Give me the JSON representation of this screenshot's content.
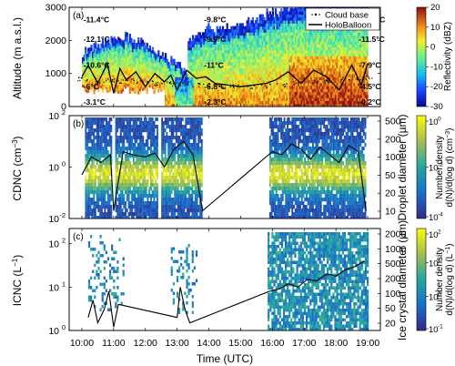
{
  "chart_data": [
    {
      "panel": "(a)",
      "type": "heatmap",
      "ylabel": "Altitude (m a.s.l.)",
      "ylim": [
        0,
        3000
      ],
      "yticks": [
        0,
        1000,
        2000,
        3000
      ],
      "colorbar": {
        "label": "Reflectivity (dBZ)",
        "range": [
          -30,
          20
        ],
        "ticks": [
          -30,
          -20,
          -10,
          0,
          10,
          20
        ]
      },
      "legend": {
        "placement": "top-right",
        "entries": [
          "Cloud base",
          "HoloBalloon"
        ]
      },
      "temperature_labels": [
        {
          "text": "-11.4°C",
          "x": 10.05,
          "y": 2550
        },
        {
          "text": "-12.1°C",
          "x": 10.05,
          "y": 1950
        },
        {
          "text": "-10.6°C",
          "x": 10.05,
          "y": 1170
        },
        {
          "text": "-6°C",
          "x": 10.05,
          "y": 520
        },
        {
          "text": "-3.1°C",
          "x": 10.05,
          "y": 60
        },
        {
          "text": "-9.8°C",
          "x": 13.85,
          "y": 2550
        },
        {
          "text": "-9.9°C",
          "x": 13.85,
          "y": 1950
        },
        {
          "text": "-11°C",
          "x": 13.85,
          "y": 1170
        },
        {
          "text": "-6.8°C",
          "x": 13.85,
          "y": 520
        },
        {
          "text": "-2.3°C",
          "x": 13.85,
          "y": 60
        },
        {
          "text": "-13.4°C",
          "x": 18.72,
          "y": 2550
        },
        {
          "text": "-11.5°C",
          "x": 18.72,
          "y": 1950
        },
        {
          "text": "-7.9°C",
          "x": 18.72,
          "y": 1170
        },
        {
          "text": "-4.5°C",
          "x": 18.72,
          "y": 520
        },
        {
          "text": "-0.2°C",
          "x": 18.72,
          "y": 60
        }
      ],
      "series": [
        {
          "name": "HoloBalloon",
          "x": [
            10.0,
            10.2,
            10.5,
            10.8,
            11.0,
            11.2,
            11.4,
            11.7,
            12.0,
            12.3,
            12.6,
            12.8,
            13.0,
            13.3,
            13.6,
            13.9,
            14.2,
            14.6,
            15.0,
            15.4,
            15.8,
            16.1,
            16.5,
            16.9,
            17.3,
            17.7,
            18.1,
            18.5,
            18.8,
            19.0
          ],
          "y": [
            900,
            1250,
            700,
            1300,
            400,
            1150,
            800,
            1050,
            600,
            1000,
            750,
            950,
            500,
            1100,
            850,
            900,
            700,
            650,
            600,
            650,
            700,
            800,
            1050,
            700,
            1100,
            900,
            500,
            1250,
            650,
            1300
          ]
        },
        {
          "name": "Cloud base",
          "x": [
            10.0,
            10.3,
            10.6,
            10.9,
            11.2,
            11.5,
            11.8,
            12.1,
            12.4,
            12.7,
            13.0,
            13.3,
            13.6,
            13.9,
            14.3,
            14.8,
            15.3,
            15.8,
            16.3,
            16.8,
            17.3,
            17.8,
            18.3,
            18.8,
            19.0
          ],
          "y": [
            820,
            800,
            760,
            780,
            740,
            800,
            760,
            720,
            700,
            740,
            680,
            700,
            650,
            640,
            620,
            610,
            600,
            620,
            640,
            700,
            740,
            780,
            820,
            860,
            880
          ]
        }
      ]
    },
    {
      "panel": "(b)",
      "type": "heatmap",
      "ylabel": "CDNC (cm",
      "ylabel_unit_suffix": ")",
      "ylim": [
        0.01,
        100
      ],
      "yscale": "log",
      "yticks": [
        0.01,
        1,
        100
      ],
      "ytick_labels": [
        "10",
        "10",
        "10"
      ],
      "ytick_exps": [
        "-2",
        "0",
        "2"
      ],
      "right_axis_label": "Droplet diameter (µm)",
      "right_ticks": [
        "10",
        "20",
        "50",
        "100",
        "200",
        "500"
      ],
      "colorbar": {
        "label_line1": "Number density",
        "label_line2": "d(N)/d(log d) (cm",
        "range": [
          0.0001,
          1
        ],
        "ticks": [
          "10",
          "10",
          "10"
        ],
        "tick_exps": [
          "-4",
          "-2",
          "0"
        ]
      },
      "series": [
        {
          "name": "CDNC",
          "x": [
            10.0,
            10.3,
            10.6,
            10.9,
            11.0,
            11.3,
            11.6,
            12.0,
            12.3,
            12.6,
            12.9,
            13.2,
            13.5,
            13.8,
            16.0,
            16.3,
            16.6,
            16.9,
            17.2,
            17.5,
            17.8,
            18.1,
            18.4,
            18.7,
            18.95
          ],
          "y": [
            0.5,
            2.5,
            1.5,
            3.0,
            0.02,
            4.0,
            3.0,
            2.5,
            3.5,
            1.0,
            5.0,
            10.0,
            3.0,
            0.02,
            4.0,
            3.0,
            8.0,
            5.0,
            2.0,
            6.0,
            3.0,
            1.5,
            7.0,
            4.0,
            0.02
          ]
        }
      ]
    },
    {
      "panel": "(c)",
      "type": "heatmap",
      "xlabel": "Time (UTC)",
      "ylabel": "ICNC (L",
      "ylabel_unit_suffix": ")",
      "ylim": [
        1,
        200
      ],
      "yscale": "log",
      "yticks": [
        1,
        10,
        100
      ],
      "ytick_labels": [
        "10",
        "10",
        "10"
      ],
      "ytick_exps": [
        "0",
        "1",
        "2"
      ],
      "right_axis_label": "Ice crystal diameter (µm)",
      "right_ticks": [
        "20",
        "50",
        "100",
        "200",
        "500",
        "1000",
        "2000"
      ],
      "colorbar": {
        "label_line1": "Number density",
        "label_line2": "d(N)/d(log d) (L",
        "range": [
          0.1,
          100
        ],
        "ticks": [
          "10",
          "10",
          "10",
          "10"
        ],
        "tick_exps": [
          "-1",
          "0",
          "1",
          "2"
        ]
      },
      "xticks": [
        "10:00",
        "11:00",
        "12:00",
        "13:00",
        "14:00",
        "15:00",
        "16:00",
        "17:00",
        "18:00",
        "19:00"
      ],
      "series": [
        {
          "name": "ICNC",
          "x": [
            10.2,
            10.35,
            10.5,
            10.7,
            10.85,
            11.0,
            11.15,
            13.0,
            13.1,
            13.25,
            13.4,
            15.9,
            16.2,
            16.5,
            16.8,
            17.1,
            17.4,
            17.7,
            18.0,
            18.3,
            18.6,
            18.9
          ],
          "y": [
            2.0,
            5.0,
            1.5,
            3.0,
            8.0,
            1.2,
            4.0,
            2.0,
            10.0,
            3.0,
            1.5,
            8.0,
            9.0,
            12.0,
            10.0,
            15.0,
            14.0,
            20.0,
            18.0,
            25.0,
            30.0,
            40.0
          ]
        }
      ]
    }
  ]
}
